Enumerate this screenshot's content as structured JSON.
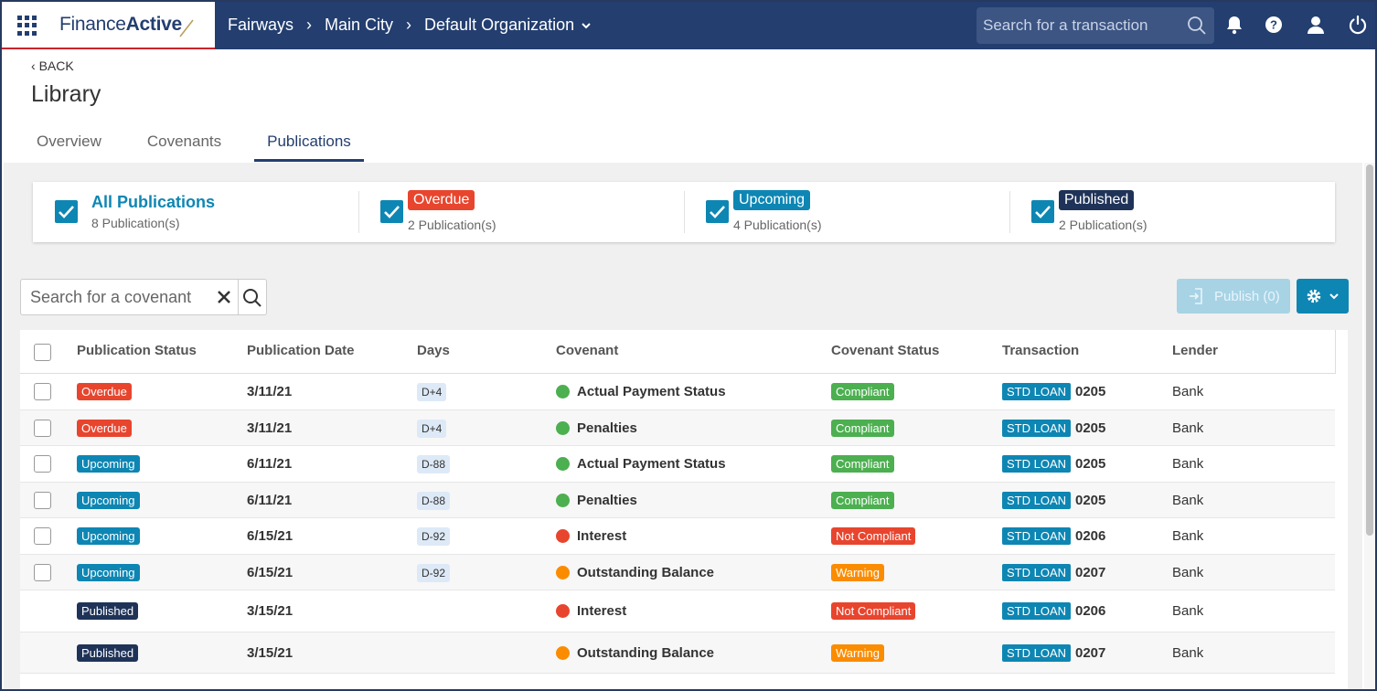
{
  "colors": {
    "navy": "#233e6f",
    "accent_blue": "#0e86b3",
    "red": "#e8452e",
    "green": "#4caf50",
    "orange": "#fb8c00",
    "dark_navy": "#1f3358"
  },
  "header": {
    "brand_prefix": "Finance",
    "brand_suffix": "Active",
    "breadcrumb": [
      "Fairways",
      "Main City",
      "Default Organization"
    ],
    "search_placeholder": "Search for a transaction",
    "icons": [
      "apps-grid-icon",
      "search-icon",
      "bell-icon",
      "help-icon",
      "user-icon",
      "power-icon"
    ]
  },
  "page": {
    "back_label": "BACK",
    "title": "Library",
    "tabs": [
      {
        "label": "Overview",
        "active": false
      },
      {
        "label": "Covenants",
        "active": false
      },
      {
        "label": "Publications",
        "active": true
      }
    ]
  },
  "filters": [
    {
      "label": "All Publications",
      "count": "8 Publication(s)",
      "checked": true,
      "style": "link"
    },
    {
      "label": "Overdue",
      "count": "2 Publication(s)",
      "checked": true,
      "color": "#e8452e"
    },
    {
      "label": "Upcoming",
      "count": "4 Publication(s)",
      "checked": true,
      "color": "#0e86b3"
    },
    {
      "label": "Published",
      "count": "2 Publication(s)",
      "checked": true,
      "color": "#1f3358"
    }
  ],
  "toolbar": {
    "search_placeholder": "Search for a covenant",
    "publish_label": "Publish (0)"
  },
  "table": {
    "columns": [
      "Publication Status",
      "Publication Date",
      "Days",
      "Covenant",
      "Covenant Status",
      "Transaction",
      "Lender"
    ],
    "rows": [
      {
        "status": "Overdue",
        "date": "3/11/21",
        "days": "D+4",
        "covenant": "Actual Payment Status",
        "cov_color": "green",
        "cov_status": "Compliant",
        "transaction_type": "STD LOAN",
        "transaction_id": "0205",
        "lender": "Bank",
        "selectable": true
      },
      {
        "status": "Overdue",
        "date": "3/11/21",
        "days": "D+4",
        "covenant": "Penalties",
        "cov_color": "green",
        "cov_status": "Compliant",
        "transaction_type": "STD LOAN",
        "transaction_id": "0205",
        "lender": "Bank",
        "selectable": true
      },
      {
        "status": "Upcoming",
        "date": "6/11/21",
        "days": "D-88",
        "covenant": "Actual Payment Status",
        "cov_color": "green",
        "cov_status": "Compliant",
        "transaction_type": "STD LOAN",
        "transaction_id": "0205",
        "lender": "Bank",
        "selectable": true
      },
      {
        "status": "Upcoming",
        "date": "6/11/21",
        "days": "D-88",
        "covenant": "Penalties",
        "cov_color": "green",
        "cov_status": "Compliant",
        "transaction_type": "STD LOAN",
        "transaction_id": "0205",
        "lender": "Bank",
        "selectable": true
      },
      {
        "status": "Upcoming",
        "date": "6/15/21",
        "days": "D-92",
        "covenant": "Interest",
        "cov_color": "red",
        "cov_status": "Not Compliant",
        "transaction_type": "STD LOAN",
        "transaction_id": "0206",
        "lender": "Bank",
        "selectable": true
      },
      {
        "status": "Upcoming",
        "date": "6/15/21",
        "days": "D-92",
        "covenant": "Outstanding Balance",
        "cov_color": "orange",
        "cov_status": "Warning",
        "transaction_type": "STD LOAN",
        "transaction_id": "0207",
        "lender": "Bank",
        "selectable": true
      },
      {
        "status": "Published",
        "date": "3/15/21",
        "days": "",
        "covenant": "Interest",
        "cov_color": "red",
        "cov_status": "Not Compliant",
        "transaction_type": "STD LOAN",
        "transaction_id": "0206",
        "lender": "Bank",
        "selectable": false
      },
      {
        "status": "Published",
        "date": "3/15/21",
        "days": "",
        "covenant": "Outstanding Balance",
        "cov_color": "orange",
        "cov_status": "Warning",
        "transaction_type": "STD LOAN",
        "transaction_id": "0207",
        "lender": "Bank",
        "selectable": false
      }
    ]
  }
}
